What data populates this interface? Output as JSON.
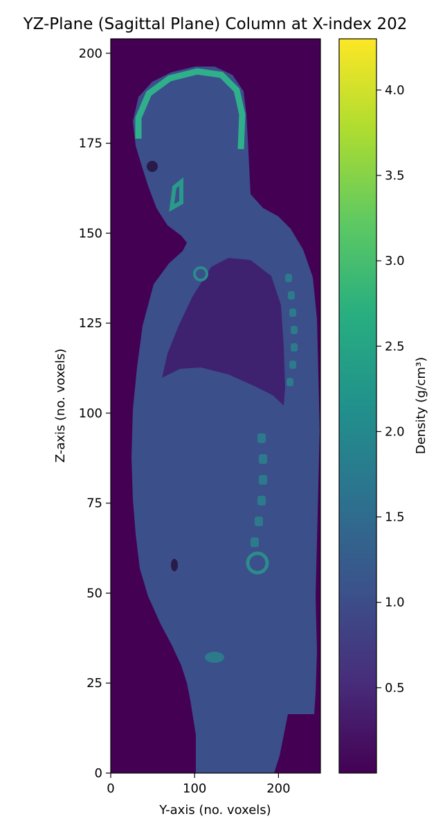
{
  "chart_data": {
    "type": "heatmap",
    "title": "YZ-Plane (Sagittal Plane) Column at X-index 202",
    "xlabel": "Y-axis (no. voxels)",
    "ylabel": "Z-axis (no. voxels)",
    "xlim": [
      0,
      250
    ],
    "ylim": [
      0,
      204
    ],
    "x_ticks": [
      0,
      100,
      200
    ],
    "y_ticks": [
      0,
      25,
      50,
      75,
      100,
      125,
      150,
      175,
      200
    ],
    "colorbar": {
      "label": "Density (g/cm³)",
      "range": [
        0.0,
        4.3
      ],
      "ticks": [
        0.5,
        1.0,
        1.5,
        2.0,
        2.5,
        3.0,
        3.5,
        4.0
      ],
      "colormap": "viridis"
    },
    "grid": false,
    "background_value": 0.0,
    "regions": [
      {
        "name": "soft tissue body",
        "approx_density": 1.05
      },
      {
        "name": "lungs",
        "approx_density": 0.3
      },
      {
        "name": "skull and spine bone",
        "approx_density": 2.3
      }
    ]
  },
  "colors": {
    "viridis_low": "#440154",
    "viridis_high": "#fde725",
    "tissue": "#3b4f8b",
    "lung": "#40236b",
    "bone": "#2fa88b"
  }
}
